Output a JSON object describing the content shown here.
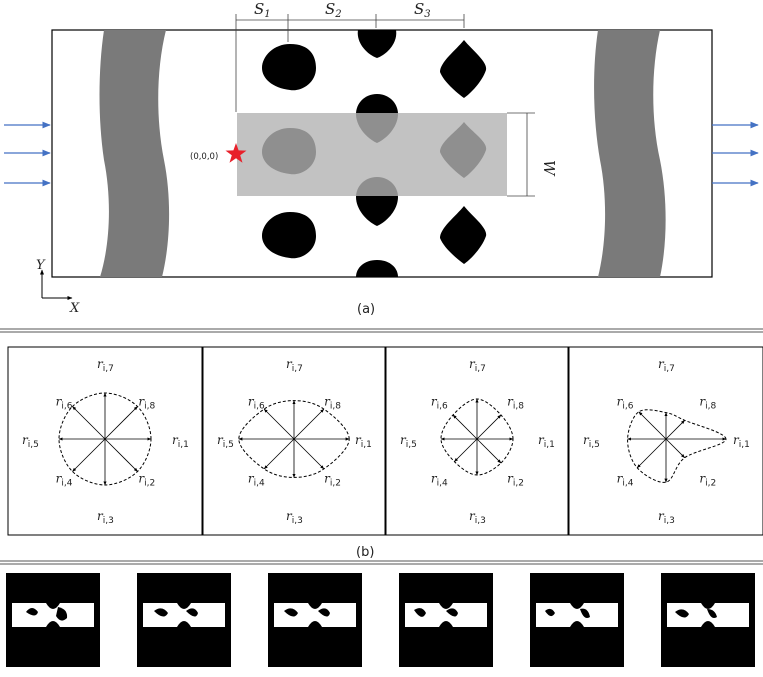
{
  "panel_a": {
    "spacing_labels": [
      {
        "main": "S",
        "sub": "1"
      },
      {
        "main": "S",
        "sub": "2"
      },
      {
        "main": "S",
        "sub": "3"
      }
    ],
    "width_label": "W",
    "origin_label": "(0,0,0)",
    "axis_x": "X",
    "axis_y": "Y",
    "caption": "(a)",
    "colors": {
      "obstacle": "#000000",
      "wall": "#7a7a7a",
      "window": "#b3b3b3",
      "flow_arrow": "#4472c4",
      "origin_star": "#e8202a"
    },
    "icons": [
      "flow-arrow-icon",
      "origin-star-icon"
    ]
  },
  "panel_b": {
    "ray_labels": [
      {
        "main": "r",
        "sub": "i,1"
      },
      {
        "main": "r",
        "sub": "i,2"
      },
      {
        "main": "r",
        "sub": "i,3"
      },
      {
        "main": "r",
        "sub": "i,4"
      },
      {
        "main": "r",
        "sub": "i,5"
      },
      {
        "main": "r",
        "sub": "i,6"
      },
      {
        "main": "r",
        "sub": "i,7"
      },
      {
        "main": "r",
        "sub": "i,8"
      }
    ],
    "caption": "(b)"
  }
}
